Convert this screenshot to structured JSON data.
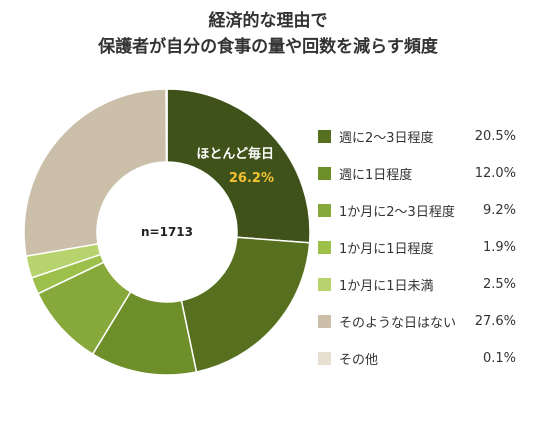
{
  "chart_data": {
    "type": "pie",
    "title_lines": [
      "経済的な理由で",
      "保護者が自分の食事の量や回数を減らす頻度"
    ],
    "center_label": "n=1713",
    "highlight": {
      "label": "ほとんど毎日",
      "value_text": "26.2%",
      "value": 26.2,
      "color": "#3f521a"
    },
    "slices": [
      {
        "label": "ほとんど毎日",
        "value": 26.2,
        "color": "#3f521a"
      },
      {
        "label": "週に2〜3日程度",
        "value": 20.5,
        "value_text": "20.5%",
        "color": "#56701f"
      },
      {
        "label": "週に1日程度",
        "value": 12.0,
        "value_text": "12.0%",
        "color": "#6e8e2a"
      },
      {
        "label": "1か月に2〜3日程度",
        "value": 9.2,
        "value_text": "9.2%",
        "color": "#87a83a"
      },
      {
        "label": "1か月に1日程度",
        "value": 1.9,
        "value_text": "1.9%",
        "color": "#9dc04a"
      },
      {
        "label": "1か月に1日未満",
        "value": 2.5,
        "value_text": "2.5%",
        "color": "#b7d36e"
      },
      {
        "label": "そのような日はない",
        "value": 27.6,
        "value_text": "27.6%",
        "color": "#cbbfaa"
      },
      {
        "label": "その他",
        "value": 0.1,
        "value_text": "0.1%",
        "color": "#e7dfd2"
      }
    ]
  }
}
